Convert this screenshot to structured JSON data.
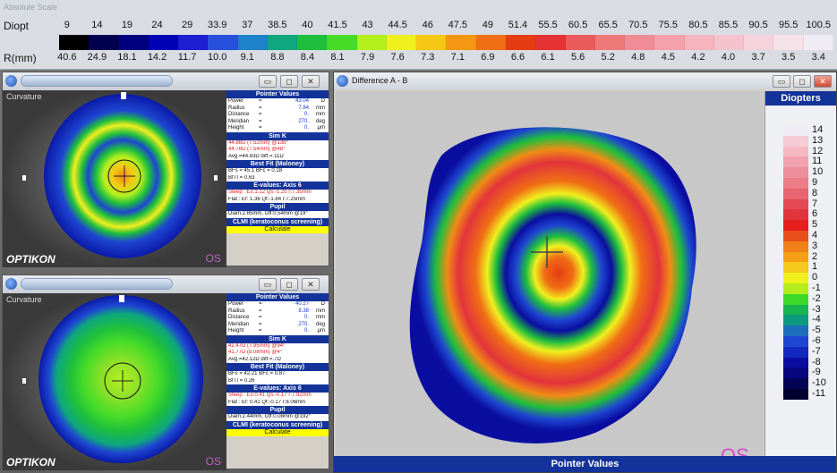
{
  "scale": {
    "title": "Absolute Scale",
    "diopt_label": "Diopt",
    "rmm_label": "R(mm)",
    "diopt_values": [
      "9",
      "14",
      "19",
      "24",
      "29",
      "33.9",
      "37",
      "38.5",
      "40",
      "41.5",
      "43",
      "44.5",
      "46",
      "47.5",
      "49",
      "51.4",
      "55.5",
      "60.5",
      "65.5",
      "70.5",
      "75.5",
      "80.5",
      "85.5",
      "90.5",
      "95.5",
      "100.5"
    ],
    "rmm_values": [
      "40.6",
      "24.9",
      "18.1",
      "14.2",
      "11.7",
      "10.0",
      "9.1",
      "8.8",
      "8.4",
      "8.1",
      "7.9",
      "7.6",
      "7.3",
      "7.1",
      "6.9",
      "6.6",
      "6.1",
      "5.6",
      "5.2",
      "4.8",
      "4.5",
      "4.2",
      "4.0",
      "3.7",
      "3.5",
      "3.4"
    ],
    "colors": [
      "#000000",
      "#000050",
      "#00007e",
      "#0000b4",
      "#1e1ed2",
      "#2850dc",
      "#1e82c8",
      "#0ea77e",
      "#1ebf3c",
      "#46dc28",
      "#b4f01e",
      "#f0f01e",
      "#f5c814",
      "#f59614",
      "#f06e14",
      "#e63c14",
      "#e63232",
      "#eb5a5a",
      "#ef7878",
      "#f08c96",
      "#f5a0aa",
      "#f5b4be",
      "#f5c3cd",
      "#f5d2dc",
      "#f5e1e8",
      "#f0ecf5"
    ]
  },
  "top_window": {
    "label": "Curvature",
    "brand": "OPTIKON",
    "eye": "OS",
    "pv": {
      "header": "Pointer Values",
      "rows": [
        {
          "k": "Power",
          "v": "43.04",
          "u": "D"
        },
        {
          "k": "Radius",
          "v": "7.84",
          "u": "mm"
        },
        {
          "k": "Distance",
          "v": "0.",
          "u": "mm"
        },
        {
          "k": "Meridian",
          "v": "270.",
          "u": "deg"
        },
        {
          "k": "Height",
          "v": "0.",
          "u": "μm"
        }
      ],
      "simk_header": "Sim K",
      "simk_lines": [
        "44.88D (7.52mm) @138°",
        "44.78D (7.54mm) @48°"
      ],
      "avg": "Avg.=44.83D  diff.=.11D",
      "bf_header": "Best Fit (Maloney)",
      "bf_lines": [
        "BFs = 45.1  BFc = 0.18",
        "BfTI = 0.63"
      ],
      "ev_header": "E-values: Axis 6",
      "ev_steep": "Steep  :  Es:1.12  Qs:-1.25  r:7.35mm",
      "ev_flat": "Flat    :  Ef: 1.36  Qf:-1.84  r:7.25mm",
      "pupil_header": "Pupil",
      "pupil": "Diam:2.85mm, Off:0.54mm @19°",
      "clmi": "CLMI (keratoconus screening)",
      "calc": "Calculate"
    }
  },
  "bottom_window": {
    "label": "Curvature",
    "brand": "OPTIKON",
    "eye": "OS",
    "pv": {
      "header": "Pointer Values",
      "rows": [
        {
          "k": "Power",
          "v": "40.27",
          "u": "D"
        },
        {
          "k": "Radius",
          "v": "8.38",
          "u": "mm"
        },
        {
          "k": "Distance",
          "v": "0.",
          "u": "mm"
        },
        {
          "k": "Meridian",
          "v": "270.",
          "u": "deg"
        },
        {
          "k": "Height",
          "v": "0.",
          "u": "μm"
        }
      ],
      "simk_header": "Sim K",
      "simk_lines": [
        "42.47D (7.95mm) @94°",
        "41.77D (8.08mm) @4°"
      ],
      "avg": "Avg.=42.12D  diff.=.7D",
      "bf_header": "Best Fit (Maloney)",
      "bf_lines": [
        "BFs = 42.21  BFc = 0.87",
        "BfTI = 0.26"
      ],
      "ev_header": "E-values: Axis 6",
      "ev_steep": "Steep  :  Es:0.41  Qs:-0.17  r:7.92mm",
      "ev_flat": "Flat    :  Ef: 0.41  Qf:-0.17  r:8.06mm",
      "pupil_header": "Pupil",
      "pupil": "Diam:2.44mm, Off:0.08mm @192°",
      "clmi": "CLMI (keratoconus screening)",
      "calc": "Calculate"
    }
  },
  "diff_window": {
    "title": "Difference A - B",
    "eye": "OS",
    "legend_title": "Diopters",
    "legend_values": [
      "14",
      "13",
      "12",
      "11",
      "10",
      "9",
      "8",
      "7",
      "6",
      "5",
      "4",
      "3",
      "2",
      "1",
      "0",
      "-1",
      "-2",
      "-3",
      "-4",
      "-5",
      "-6",
      "-7",
      "-8",
      "-9",
      "-10",
      "-11"
    ],
    "legend_colors": [
      "#f0ecf5",
      "#f5cbd6",
      "#f5b8c2",
      "#f2a2ae",
      "#ee8e9a",
      "#ec7c86",
      "#e8646e",
      "#e44a54",
      "#e2343c",
      "#e61e1e",
      "#e8501a",
      "#f08018",
      "#f5a014",
      "#f5c81e",
      "#f0f01e",
      "#b4ec1e",
      "#3cd82a",
      "#18b450",
      "#0e9a7e",
      "#1e6ebe",
      "#1e46d2",
      "#1428c0",
      "#0a0ea0",
      "#06067e",
      "#040456",
      "#000030"
    ],
    "pointer_values": "Pointer Values"
  },
  "titlebar": {
    "min": "▭",
    "max": "◻",
    "close": "✕"
  }
}
